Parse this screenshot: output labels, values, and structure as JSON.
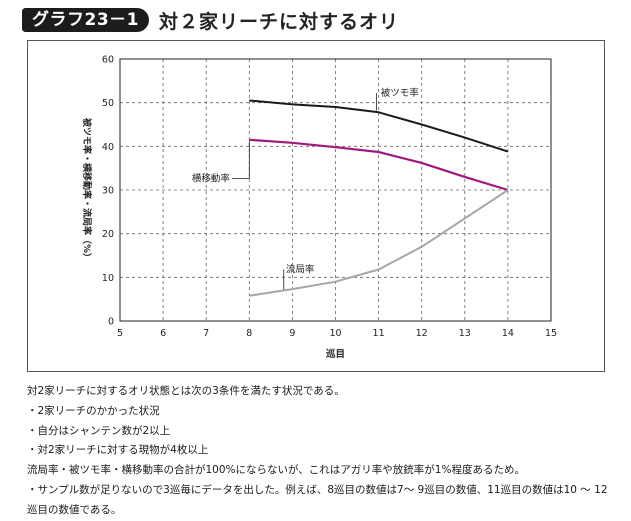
{
  "header": {
    "figure_label": "グラフ23－1",
    "title": "対２家リーチに対するオリ"
  },
  "chart_data": {
    "type": "line",
    "xlabel": "巡目",
    "ylabel": "被ツモ率・横移動率・流局率（%）",
    "xlim": [
      5,
      15
    ],
    "ylim": [
      0,
      60
    ],
    "xticks": [
      5,
      6,
      7,
      8,
      9,
      10,
      11,
      12,
      13,
      14,
      15
    ],
    "yticks": [
      0,
      10,
      20,
      30,
      40,
      50,
      60
    ],
    "grid": true,
    "series": [
      {
        "name": "被ツモ率",
        "color": "#1a1a1a",
        "x": [
          8,
          9,
          10,
          11,
          12,
          13,
          14
        ],
        "y": [
          50.5,
          49.6,
          49.0,
          47.8,
          45.0,
          42.0,
          38.8
        ]
      },
      {
        "name": "横移動率",
        "color": "#a0197e",
        "x": [
          8,
          9,
          10,
          11,
          12,
          13,
          14
        ],
        "y": [
          41.5,
          40.8,
          39.8,
          38.7,
          36.2,
          33.0,
          30.0
        ]
      },
      {
        "name": "流局率",
        "color": "#a6a6a6",
        "x": [
          8,
          9,
          10,
          11,
          12,
          13,
          14
        ],
        "y": [
          5.8,
          7.3,
          9.0,
          11.8,
          17.0,
          23.5,
          30.0
        ]
      }
    ]
  },
  "notes": [
    "対2家リーチに対するオリ状態とは次の3条件を満たす状況である。",
    "・2家リーチのかかった状況",
    "・自分はシャンテン数が2以上",
    "・対2家リーチに対する現物が4枚以上",
    "流局率・被ツモ率・横移動率の合計が100%にならないが、これはアガリ率や放銃率が1%程度あるため。",
    "・サンプル数が足りないので3巡毎にデータを出した。例えば、8巡目の数値は7～ 9巡目の数値、11巡目の数値は10 ～ 12",
    "巡目の数値である。"
  ]
}
